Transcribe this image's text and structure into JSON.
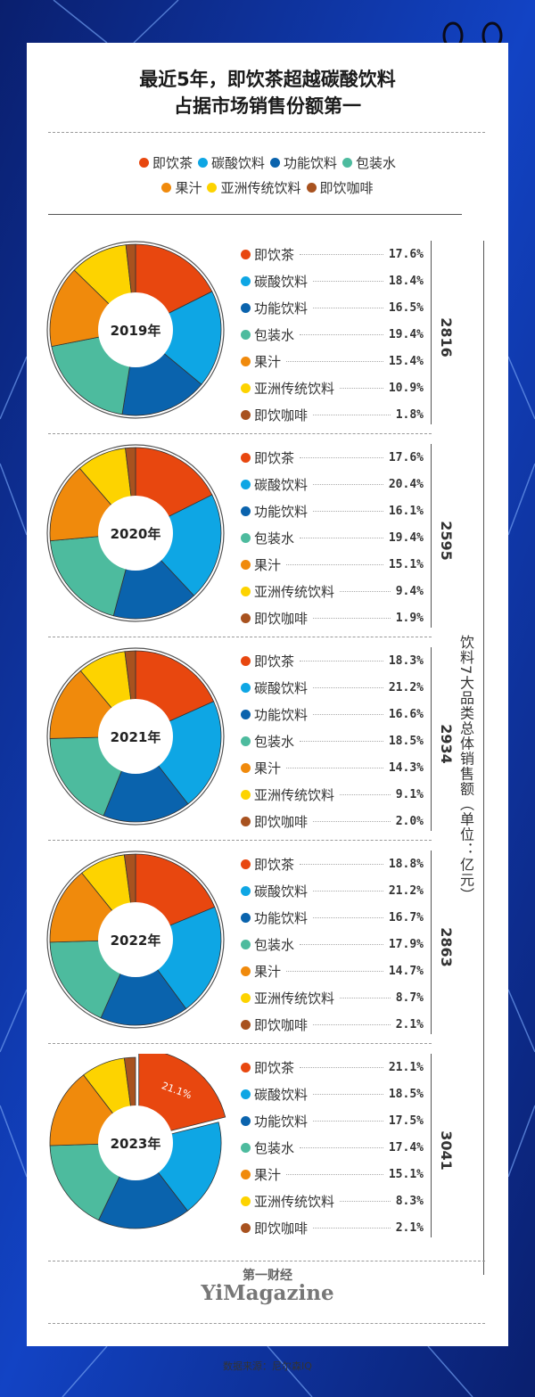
{
  "title_line1": "最近5年，即饮茶超越碳酸饮料",
  "title_line2": "占据市场销售份额第一",
  "legend": [
    {
      "name": "即饮茶",
      "color": "#e8470f"
    },
    {
      "name": "碳酸饮料",
      "color": "#0ea6e4"
    },
    {
      "name": "功能饮料",
      "color": "#0a63ad"
    },
    {
      "name": "包装水",
      "color": "#4dbb9e"
    },
    {
      "name": "果汁",
      "color": "#f08a0c"
    },
    {
      "name": "亚洲传统饮料",
      "color": "#fdd300"
    },
    {
      "name": "即饮咖啡",
      "color": "#a8521f"
    }
  ],
  "axis_title": "饮料7大品类总体销售额（单位：亿元）",
  "chart_data": {
    "type": "pie",
    "categories": [
      "即饮茶",
      "碳酸饮料",
      "功能饮料",
      "包装水",
      "果汁",
      "亚洲传统饮料",
      "即饮咖啡"
    ],
    "unit": "%",
    "total_unit": "亿元",
    "panels": [
      {
        "year_label": "2019年",
        "total": "2816",
        "values": [
          17.6,
          18.4,
          16.5,
          19.4,
          15.4,
          10.9,
          1.8
        ],
        "labels": [
          "17.6%",
          "18.4%",
          "16.5%",
          "19.4%",
          "15.4%",
          "10.9%",
          "1.8%"
        ]
      },
      {
        "year_label": "2020年",
        "total": "2595",
        "values": [
          17.6,
          20.4,
          16.1,
          19.4,
          15.1,
          9.4,
          1.9
        ],
        "labels": [
          "17.6%",
          "20.4%",
          "16.1%",
          "19.4%",
          "15.1%",
          "9.4%",
          "1.9%"
        ]
      },
      {
        "year_label": "2021年",
        "total": "2934",
        "values": [
          18.3,
          21.2,
          16.6,
          18.5,
          14.3,
          9.1,
          2.0
        ],
        "labels": [
          "18.3%",
          "21.2%",
          "16.6%",
          "18.5%",
          "14.3%",
          "9.1%",
          "2.0%"
        ]
      },
      {
        "year_label": "2022年",
        "total": "2863",
        "values": [
          18.8,
          21.2,
          16.7,
          17.9,
          14.7,
          8.7,
          2.1
        ],
        "labels": [
          "18.8%",
          "21.2%",
          "16.7%",
          "17.9%",
          "14.7%",
          "8.7%",
          "2.1%"
        ]
      },
      {
        "year_label": "2023年",
        "total": "3041",
        "values": [
          21.1,
          18.5,
          17.5,
          17.4,
          15.1,
          8.3,
          2.1
        ],
        "labels": [
          "21.1%",
          "18.5%",
          "17.5%",
          "17.4%",
          "15.1%",
          "8.3%",
          "2.1%"
        ],
        "highlight_label": "21.1%"
      }
    ]
  },
  "brand_cn": "第一财经",
  "brand_en": "YiMagazine",
  "source": "数据来源：尼尔森IQ"
}
